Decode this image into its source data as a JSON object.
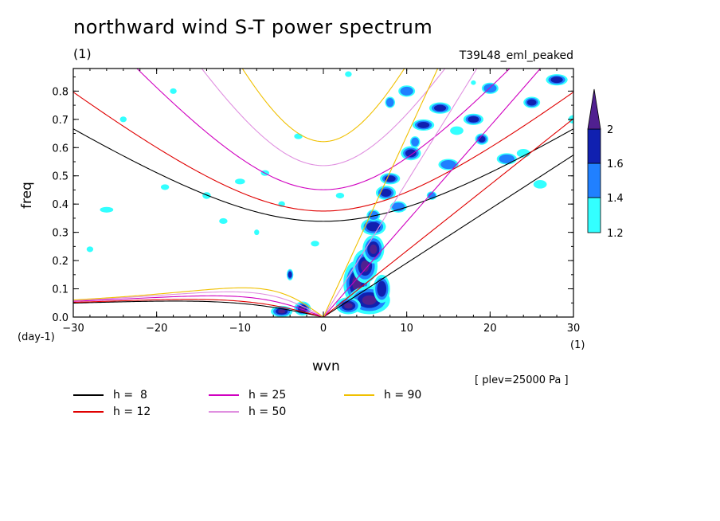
{
  "chart_data": {
    "type": "contour",
    "title": "northward wind S-T power spectrum",
    "subtitle_left": "(1)",
    "subtitle_right": "T39L48_eml_peaked",
    "xlabel": "wvn",
    "ylabel": "freq",
    "x_unit": "(1)",
    "y_unit": "(day-1)",
    "annotation": "[ plev=25000 Pa ]",
    "xlim": [
      -30,
      30
    ],
    "ylim": [
      0,
      0.88
    ],
    "x_ticks": [
      "-30",
      "-20",
      "-10",
      "0",
      "10",
      "20",
      "30"
    ],
    "y_ticks": [
      "0.0",
      "0.1",
      "0.2",
      "0.3",
      "0.4",
      "0.5",
      "0.6",
      "0.7",
      "0.8"
    ],
    "colorbar": {
      "levels": [
        "1.2",
        "1.4",
        "1.6",
        "2"
      ],
      "colors": [
        "#33ffff",
        "#2080ff",
        "#1020b0",
        "#502090"
      ]
    },
    "dispersion_curves": [
      {
        "label": "h =  8",
        "color": "#000000"
      },
      {
        "label": "h = 12",
        "color": "#e00000"
      },
      {
        "label": "h = 25",
        "color": "#d000c0"
      },
      {
        "label": "h = 50",
        "color": "#e090e0"
      },
      {
        "label": "h = 90",
        "color": "#f0c000"
      }
    ]
  }
}
